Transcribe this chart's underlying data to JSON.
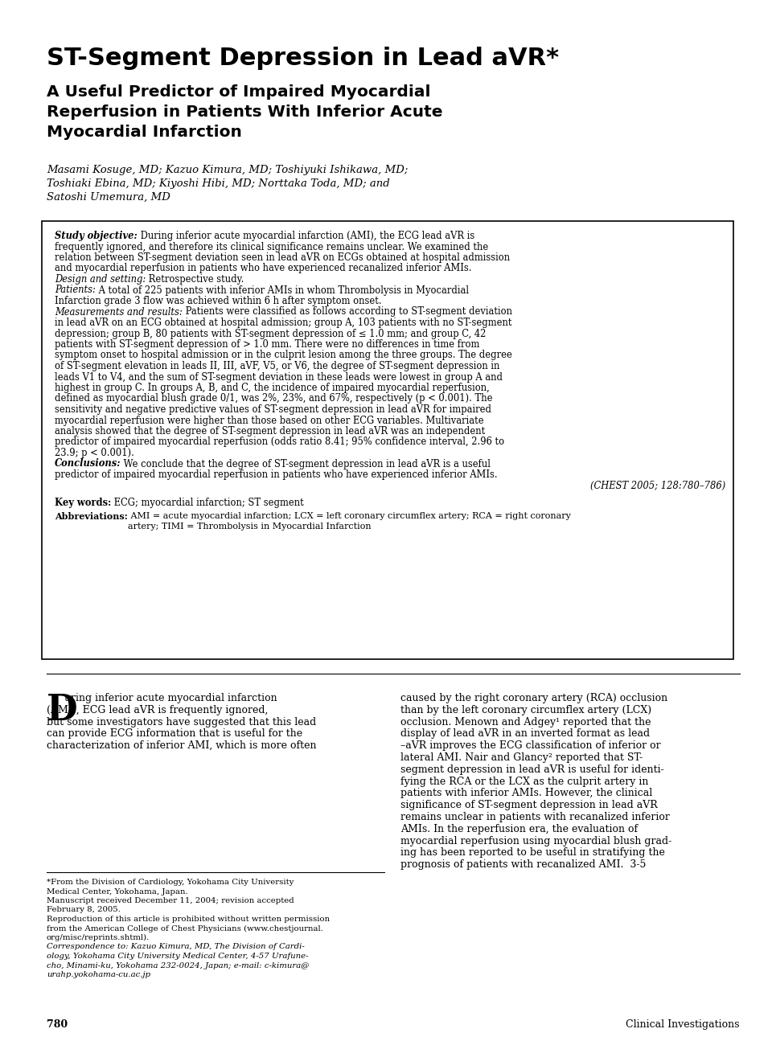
{
  "bg_color": "#ffffff",
  "title": "ST-Segment Depression in Lead aVR*",
  "subtitle_line1": "A Useful Predictor of Impaired Myocardial",
  "subtitle_line2": "Reperfusion in Patients With Inferior Acute",
  "subtitle_line3": "Myocardial Infarction",
  "authors_line1": "Masami Kosuge, MD; Kazuo Kimura, MD; Toshiyuki Ishikawa, MD;",
  "authors_line2": "Toshiaki Ebina, MD; Kiyoshi Hibi, MD; Norttaka Toda, MD; and",
  "authors_line3": "Satoshi Umemura, MD",
  "abstract_label_1": "Study objective:",
  "abstract_text_1": " During inferior acute myocardial infarction (AMI), the ECG lead aVR is\nfrequently ignored, and therefore its clinical significance remains unclear. We examined the\nrelation between ST-segment deviation seen in lead aVR on ECGs obtained at hospital admission\nand myocardial reperfusion in patients who have experienced recanalized inferior AMIs.",
  "abstract_label_2": "Design and setting:",
  "abstract_text_2": " Retrospective study.",
  "abstract_label_3": "Patients:",
  "abstract_text_3": " A total of 225 patients with inferior AMIs in whom Thrombolysis in Myocardial\nInfarction grade 3 flow was achieved within 6 h after symptom onset.",
  "abstract_label_4": "Measurements and results:",
  "abstract_text_4": " Patients were classified as follows according to ST-segment deviation\nin lead aVR on an ECG obtained at hospital admission; group A, 103 patients with no ST-segment\ndepression; group B, 80 patients with ST-segment depression of ≤ 1.0 mm; and group C, 42\npatients with ST-segment depression of > 1.0 mm. There were no differences in time from\nsymptom onset to hospital admission or in the culprit lesion among the three groups. The degree\nof ST-segment elevation in leads II, III, aVF, V5, or V6, the degree of ST-segment depression in\nleads V1 to V4, and the sum of ST-segment deviation in these leads were lowest in group A and\nhighest in group C. In groups A, B, and C, the incidence of impaired myocardial reperfusion,\ndefined as myocardial blush grade 0/1, was 2%, 23%, and 67%, respectively (p < 0.001). The\nsensitivity and negative predictive values of ST-segment depression in lead aVR for impaired\nmyocardial reperfusion were higher than those based on other ECG variables. Multivariate\nanalysis showed that the degree of ST-segment depression in lead aVR was an independent\npredictor of impaired myocardial reperfusion (odds ratio 8.41; 95% confidence interval, 2.96 to\n23.9; p < 0.001).",
  "abstract_label_5": "Conclusions:",
  "abstract_text_5": " We conclude that the degree of ST-segment depression in lead aVR is a useful\npredictor of impaired myocardial reperfusion in patients who have experienced inferior AMIs.",
  "abstract_citation": "(CHEST 2005; 128:780–786)",
  "keywords_label": "Key words:",
  "keywords_text": " ECG; myocardial infarction; ST segment",
  "abbrev_label": "Abbreviations:",
  "abbrev_text": " AMI = acute myocardial infarction; LCX = left coronary circumflex artery; RCA = right coronary\nartery; TIMI = Thrombolysis in Myocardial Infarction",
  "body_left_line1_a": "uring inferior acute myocardial infarction",
  "body_left_lines": [
    "(AMI), ECG lead aVR is frequently ignored,",
    "but some investigators have suggested that this lead",
    "can provide ECG information that is useful for the",
    "characterization of inferior AMI, which is more often"
  ],
  "body_right_lines": [
    "caused by the right coronary artery (RCA) occlusion",
    "than by the left coronary circumflex artery (LCX)",
    "occlusion. Menown and Adgey¹ reported that the",
    "display of lead aVR in an inverted format as lead",
    "–aVR improves the ECG classification of inferior or",
    "lateral AMI. Nair and Glancy² reported that ST-",
    "segment depression in lead aVR is useful for identi-",
    "fying the RCA or the LCX as the culprit artery in",
    "patients with inferior AMIs. However, the clinical",
    "significance of ST-segment depression in lead aVR",
    "remains unclear in patients with recanalized inferior",
    "AMIs. In the reperfusion era, the evaluation of",
    "myocardial reperfusion using myocardial blush grad-",
    "ing has been reported to be useful in stratifying the",
    "prognosis of patients with recanalized AMI.  3-5"
  ],
  "footnote_lines_normal": [
    "*From the Division of Cardiology, Yokohama City University",
    "Medical Center, Yokohama, Japan.",
    "Manuscript received December 11, 2004; revision accepted",
    "February 8, 2005.",
    "Reproduction of this article is prohibited without written permission",
    "from the American College of Chest Physicians (www.chestjournal.",
    "org/misc/reprints.shtml)."
  ],
  "footnote_lines_italic": [
    "Correspondence to: Kazuo Kimura, MD, The Division of Cardi-",
    "ology, Yokohama City University Medical Center, 4-57 Urafune-",
    "cho, Minami-ku, Yokohama 232-0024, Japan; e-mail: c-kimura@",
    "urahp.yokohama-cu.ac.jp"
  ],
  "page_number": "780",
  "section_label": "Clinical Investigations"
}
